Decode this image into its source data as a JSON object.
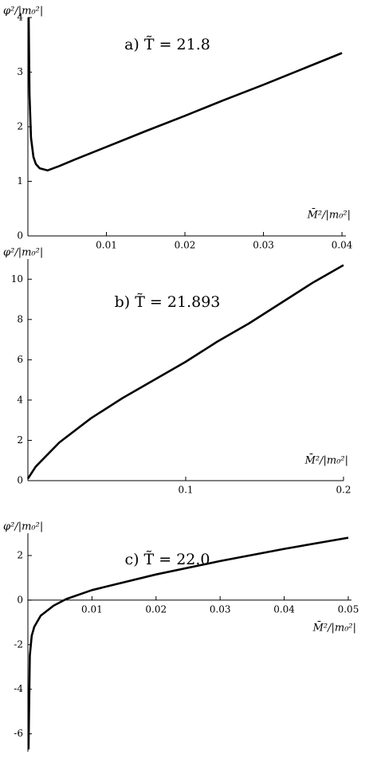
{
  "chart_data": [
    {
      "type": "line",
      "title": "a)   T̃ = 21.8",
      "y_label": "φ²/|m₀²|",
      "x_label": "M̄²/|m₀²|",
      "color": "#000000",
      "x": [
        0.0001,
        0.0002,
        0.0004,
        0.0007,
        0.001,
        0.0015,
        0.0025,
        0.004,
        0.006,
        0.01,
        0.015,
        0.02,
        0.025,
        0.03,
        0.035,
        0.04
      ],
      "values": [
        4,
        2.6,
        1.8,
        1.45,
        1.32,
        1.24,
        1.2,
        1.28,
        1.4,
        1.63,
        1.92,
        2.2,
        2.49,
        2.77,
        3.06,
        3.35
      ],
      "xlim": [
        0,
        0.0405
      ],
      "ylim": [
        0,
        4
      ],
      "xticks": [
        0.01,
        0.02,
        0.03,
        0.04
      ],
      "yticks": [
        0,
        1,
        2,
        3,
        4
      ]
    },
    {
      "type": "line",
      "title": "b)   T̃ = 21.893",
      "y_label": "φ²/|m₀²|",
      "x_label": "M̄²/|m₀²|",
      "color": "#000000",
      "x": [
        0,
        0.005,
        0.01,
        0.02,
        0.04,
        0.06,
        0.08,
        0.1,
        0.12,
        0.14,
        0.16,
        0.18,
        0.2
      ],
      "values": [
        0.1,
        0.7,
        1.1,
        1.9,
        3.1,
        4.1,
        5.0,
        5.9,
        6.9,
        7.8,
        8.8,
        9.8,
        10.7
      ],
      "xlim": [
        0,
        0.2
      ],
      "ylim": [
        0,
        11
      ],
      "xticks": [
        0.1,
        0.2
      ],
      "yticks": [
        0,
        2,
        4,
        6,
        8,
        10
      ]
    },
    {
      "type": "line",
      "title": "c)   T̃ = 22.0",
      "y_label": "φ²/|m₀²|",
      "x_label": "M̄²/|m₀²|",
      "color": "#000000",
      "x": [
        0.0001,
        0.0003,
        0.0006,
        0.001,
        0.002,
        0.004,
        0.006,
        0.01,
        0.02,
        0.03,
        0.04,
        0.05
      ],
      "values": [
        -6.7,
        -2.5,
        -1.6,
        -1.2,
        -0.7,
        -0.25,
        0.05,
        0.45,
        1.15,
        1.75,
        2.3,
        2.8
      ],
      "xlim": [
        0,
        0.0505
      ],
      "ylim": [
        -6.8,
        3
      ],
      "xticks": [
        0.01,
        0.02,
        0.03,
        0.04,
        0.05
      ],
      "yticks": [
        -6,
        -4,
        -2,
        0,
        2
      ]
    }
  ]
}
